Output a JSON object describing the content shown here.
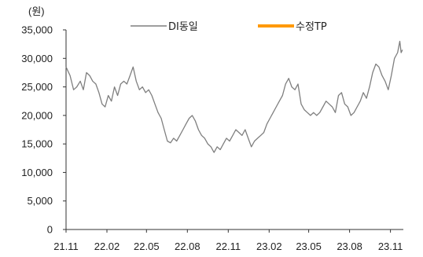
{
  "chart_data": {
    "type": "line",
    "title": "",
    "xlabel": "",
    "ylabel": "",
    "unit_label": "(원)",
    "ylim": [
      0,
      35000
    ],
    "yticks": [
      0,
      5000,
      10000,
      15000,
      20000,
      25000,
      30000,
      35000
    ],
    "ytick_labels": [
      "0",
      "5,000",
      "10,000",
      "15,000",
      "20,000",
      "25,000",
      "30,000",
      "35,000"
    ],
    "xlim": [
      "2021-11-01",
      "2023-11-30"
    ],
    "xticks": [
      "2021-11-01",
      "2022-02-01",
      "2022-05-01",
      "2022-08-01",
      "2022-11-01",
      "2023-02-01",
      "2023-05-01",
      "2023-08-01",
      "2023-11-01"
    ],
    "xtick_labels": [
      "21.11",
      "22.02",
      "22.05",
      "22.08",
      "22.11",
      "23.02",
      "23.05",
      "23.08",
      "23.11"
    ],
    "grid": false,
    "legend": "top-center",
    "series": [
      {
        "name": "DI동일",
        "color": "#7f7f7f",
        "points": [
          [
            "2021-11-01",
            28500
          ],
          [
            "2021-11-10",
            27000
          ],
          [
            "2021-11-18",
            24500
          ],
          [
            "2021-11-25",
            25000
          ],
          [
            "2021-12-03",
            26000
          ],
          [
            "2021-12-10",
            24500
          ],
          [
            "2021-12-17",
            27500
          ],
          [
            "2021-12-24",
            27000
          ],
          [
            "2021-12-31",
            26000
          ],
          [
            "2022-01-07",
            25500
          ],
          [
            "2022-01-14",
            24000
          ],
          [
            "2022-01-21",
            22000
          ],
          [
            "2022-01-28",
            21500
          ],
          [
            "2022-02-04",
            23500
          ],
          [
            "2022-02-11",
            22500
          ],
          [
            "2022-02-18",
            25000
          ],
          [
            "2022-02-25",
            23500
          ],
          [
            "2022-03-04",
            25500
          ],
          [
            "2022-03-11",
            26000
          ],
          [
            "2022-03-18",
            25500
          ],
          [
            "2022-03-25",
            27000
          ],
          [
            "2022-04-01",
            28500
          ],
          [
            "2022-04-08",
            26000
          ],
          [
            "2022-04-15",
            24500
          ],
          [
            "2022-04-22",
            25000
          ],
          [
            "2022-04-29",
            24000
          ],
          [
            "2022-05-06",
            24500
          ],
          [
            "2022-05-13",
            23500
          ],
          [
            "2022-05-20",
            22000
          ],
          [
            "2022-05-27",
            20500
          ],
          [
            "2022-06-03",
            19500
          ],
          [
            "2022-06-10",
            17500
          ],
          [
            "2022-06-17",
            15500
          ],
          [
            "2022-06-24",
            15200
          ],
          [
            "2022-07-01",
            16000
          ],
          [
            "2022-07-08",
            15500
          ],
          [
            "2022-07-15",
            16500
          ],
          [
            "2022-07-22",
            17500
          ],
          [
            "2022-07-29",
            18500
          ],
          [
            "2022-08-05",
            19500
          ],
          [
            "2022-08-12",
            20000
          ],
          [
            "2022-08-19",
            19000
          ],
          [
            "2022-08-26",
            17500
          ],
          [
            "2022-09-02",
            16500
          ],
          [
            "2022-09-09",
            16000
          ],
          [
            "2022-09-16",
            15000
          ],
          [
            "2022-09-23",
            14500
          ],
          [
            "2022-09-30",
            13500
          ],
          [
            "2022-10-07",
            14500
          ],
          [
            "2022-10-14",
            14000
          ],
          [
            "2022-10-21",
            15000
          ],
          [
            "2022-10-28",
            16000
          ],
          [
            "2022-11-04",
            15500
          ],
          [
            "2022-11-11",
            16500
          ],
          [
            "2022-11-18",
            17500
          ],
          [
            "2022-11-25",
            17000
          ],
          [
            "2022-12-02",
            16500
          ],
          [
            "2022-12-09",
            17500
          ],
          [
            "2022-12-16",
            16000
          ],
          [
            "2022-12-23",
            14500
          ],
          [
            "2022-12-30",
            15500
          ],
          [
            "2023-01-06",
            16000
          ],
          [
            "2023-01-13",
            16500
          ],
          [
            "2023-01-20",
            17000
          ],
          [
            "2023-01-27",
            18500
          ],
          [
            "2023-02-03",
            19500
          ],
          [
            "2023-02-10",
            20500
          ],
          [
            "2023-02-17",
            21500
          ],
          [
            "2023-02-24",
            22500
          ],
          [
            "2023-03-03",
            23500
          ],
          [
            "2023-03-10",
            25500
          ],
          [
            "2023-03-17",
            26500
          ],
          [
            "2023-03-24",
            25000
          ],
          [
            "2023-03-31",
            24500
          ],
          [
            "2023-04-07",
            25500
          ],
          [
            "2023-04-14",
            22000
          ],
          [
            "2023-04-21",
            21000
          ],
          [
            "2023-04-28",
            20500
          ],
          [
            "2023-05-05",
            20000
          ],
          [
            "2023-05-12",
            20500
          ],
          [
            "2023-05-19",
            20000
          ],
          [
            "2023-05-26",
            20500
          ],
          [
            "2023-06-02",
            21500
          ],
          [
            "2023-06-09",
            22500
          ],
          [
            "2023-06-16",
            22000
          ],
          [
            "2023-06-23",
            21500
          ],
          [
            "2023-06-30",
            20500
          ],
          [
            "2023-07-07",
            23500
          ],
          [
            "2023-07-14",
            24000
          ],
          [
            "2023-07-21",
            22000
          ],
          [
            "2023-07-28",
            21500
          ],
          [
            "2023-08-04",
            20000
          ],
          [
            "2023-08-11",
            20500
          ],
          [
            "2023-08-18",
            21500
          ],
          [
            "2023-08-25",
            22500
          ],
          [
            "2023-09-01",
            24000
          ],
          [
            "2023-09-08",
            23000
          ],
          [
            "2023-09-15",
            25000
          ],
          [
            "2023-09-22",
            27500
          ],
          [
            "2023-09-29",
            29000
          ],
          [
            "2023-10-06",
            28500
          ],
          [
            "2023-10-13",
            27000
          ],
          [
            "2023-10-20",
            26000
          ],
          [
            "2023-10-27",
            24500
          ],
          [
            "2023-11-03",
            27000
          ],
          [
            "2023-11-10",
            30000
          ],
          [
            "2023-11-17",
            31000
          ],
          [
            "2023-11-22",
            33000
          ],
          [
            "2023-11-25",
            31000
          ],
          [
            "2023-11-28",
            31500
          ]
        ]
      },
      {
        "name": "수정TP",
        "color": "#ff9900",
        "points": []
      }
    ]
  }
}
